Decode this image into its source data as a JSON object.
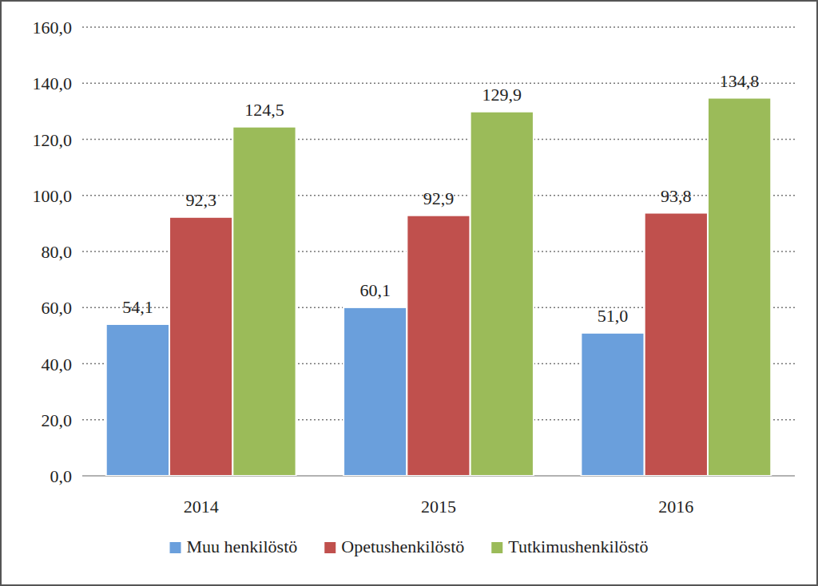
{
  "chart_data": {
    "type": "bar",
    "categories": [
      "2014",
      "2015",
      "2016"
    ],
    "series": [
      {
        "name": "Muu henkilöstö",
        "color": "#6a9fdc",
        "values": [
          54.1,
          60.1,
          51.0
        ],
        "value_labels": [
          "54,1",
          "60,1",
          "51,0"
        ]
      },
      {
        "name": "Opetushenkilöstö",
        "color": "#c0504d",
        "values": [
          92.3,
          92.9,
          93.8
        ],
        "value_labels": [
          "92,3",
          "92,9",
          "93,8"
        ]
      },
      {
        "name": "Tutkimushenkilöstö",
        "color": "#9bbb59",
        "values": [
          124.5,
          129.9,
          134.8
        ],
        "value_labels": [
          "124,5",
          "129,9",
          "134,8"
        ]
      }
    ],
    "ylim": [
      0,
      160
    ],
    "yticks": [
      {
        "value": 0,
        "label": "0,0"
      },
      {
        "value": 20,
        "label": "20,0"
      },
      {
        "value": 40,
        "label": "40,0"
      },
      {
        "value": 60,
        "label": "60,0"
      },
      {
        "value": 80,
        "label": "80,0"
      },
      {
        "value": 100,
        "label": "100,0"
      },
      {
        "value": 120,
        "label": "120,0"
      },
      {
        "value": 140,
        "label": "140,0"
      },
      {
        "value": 160,
        "label": "160,0"
      }
    ],
    "grid": true,
    "data_labels": true,
    "legend": "bottom"
  }
}
